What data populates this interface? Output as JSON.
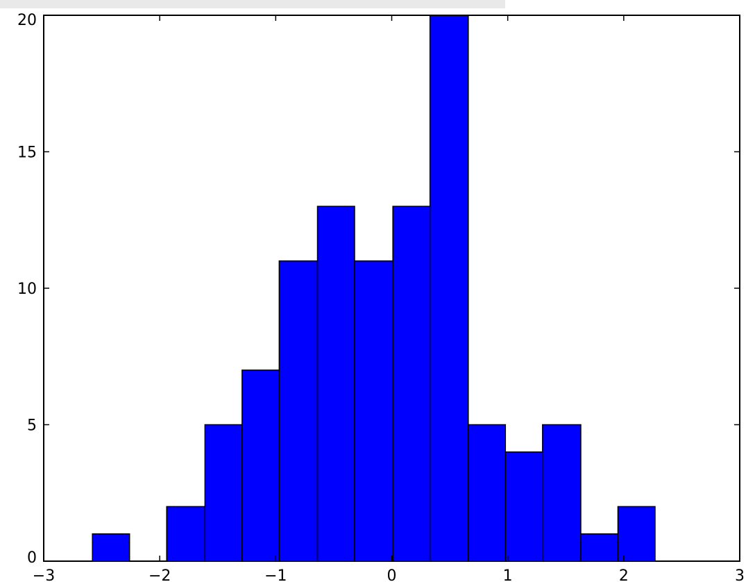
{
  "chart_data": {
    "type": "bar",
    "title": "",
    "xlabel": "",
    "ylabel": "",
    "xlim": [
      -3,
      3
    ],
    "ylim": [
      0,
      20
    ],
    "grid": false,
    "legend": "none",
    "xticks": [
      -3,
      -2,
      -1,
      0,
      1,
      2,
      3
    ],
    "yticks": [
      0,
      5,
      10,
      15,
      20
    ],
    "xtick_labels": [
      "−3",
      "−2",
      "−1",
      "0",
      "1",
      "2",
      "3"
    ],
    "ytick_labels": [
      "0",
      "5",
      "10",
      "15",
      "20"
    ],
    "bins": [
      {
        "x0": -2.58,
        "x1": -2.26,
        "value": 1
      },
      {
        "x0": -2.26,
        "x1": -1.94,
        "value": 0
      },
      {
        "x0": -1.94,
        "x1": -1.61,
        "value": 2
      },
      {
        "x0": -1.61,
        "x1": -1.29,
        "value": 5
      },
      {
        "x0": -1.29,
        "x1": -0.97,
        "value": 7
      },
      {
        "x0": -0.97,
        "x1": -0.64,
        "value": 11
      },
      {
        "x0": -0.64,
        "x1": -0.32,
        "value": 13
      },
      {
        "x0": -0.32,
        "x1": 0.01,
        "value": 11
      },
      {
        "x0": 0.01,
        "x1": 0.33,
        "value": 13
      },
      {
        "x0": 0.33,
        "x1": 0.66,
        "value": 20
      },
      {
        "x0": 0.66,
        "x1": 0.98,
        "value": 5
      },
      {
        "x0": 0.98,
        "x1": 1.3,
        "value": 4
      },
      {
        "x0": 1.3,
        "x1": 1.63,
        "value": 5
      },
      {
        "x0": 1.63,
        "x1": 1.95,
        "value": 1
      },
      {
        "x0": 1.95,
        "x1": 2.27,
        "value": 2
      }
    ],
    "colors": {
      "bar_fill": "#0000ff",
      "bar_edge": "#000000",
      "axes": "#000000",
      "background": "#ffffff"
    }
  }
}
